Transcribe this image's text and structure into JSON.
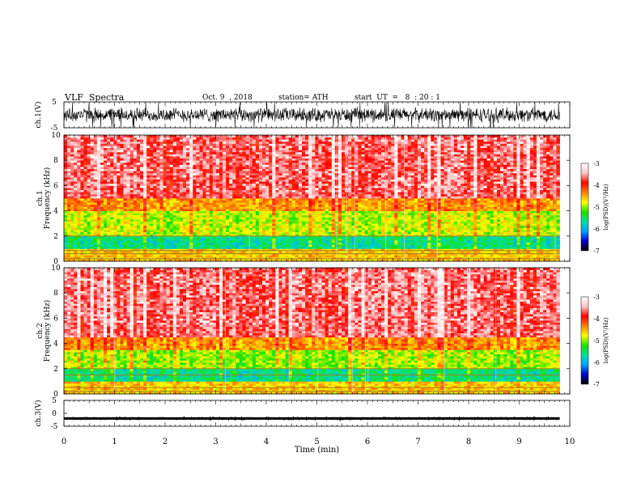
{
  "header": {
    "title": "VLF  Spectra",
    "date": "Oct. 9  , 2018",
    "station": "station= ATH",
    "start": "start  UT  =   8  : 20 : 1"
  },
  "chart_data": [
    {
      "type": "line",
      "name": "ch1-waveform",
      "ylabel": "ch.1(V)",
      "ylim": [
        -5,
        5
      ],
      "y_ticks": [
        "5",
        "-5"
      ],
      "xlim": [
        0,
        10
      ],
      "x_end": 9.8,
      "series": [
        {
          "mean": 0.0,
          "amplitude": 3.2,
          "color": "#000000"
        }
      ]
    },
    {
      "type": "heatmap",
      "name": "ch1-spectrogram",
      "ylabel": "ch.1\nFrequency  (kHz)",
      "ylim": [
        0,
        10
      ],
      "y_ticks": [
        "0",
        "2",
        "4",
        "6",
        "8",
        "10"
      ],
      "xlim": [
        0,
        10
      ],
      "x_end": 9.8,
      "colorbar": {
        "label": "log(PSD)(V²/Hz)",
        "range": [
          -7,
          -3
        ],
        "ticks": [
          "-3",
          "-4",
          "-5",
          "-6",
          "-7"
        ],
        "colors": [
          "#000000",
          "#0000c8",
          "#00a0ff",
          "#00e0a0",
          "#20e000",
          "#ffff00",
          "#ff8000",
          "#ff0000",
          "#ffc8c8",
          "#ffffff"
        ]
      },
      "bands_khz": [
        {
          "from": 5.0,
          "to": 10.0,
          "level": -3.7
        },
        {
          "from": 4.0,
          "to": 5.0,
          "level": -4.4
        },
        {
          "from": 2.0,
          "to": 4.0,
          "level": -4.9
        },
        {
          "from": 1.0,
          "to": 2.0,
          "level": -5.6
        },
        {
          "from": 0.0,
          "to": 1.0,
          "level": -4.6
        }
      ],
      "lines_khz": [
        2.0,
        0.85,
        0.6,
        0.2
      ]
    },
    {
      "type": "heatmap",
      "name": "ch2-spectrogram",
      "ylabel": "ch.2\nFrequency  (kHz)",
      "ylim": [
        0,
        10
      ],
      "y_ticks": [
        "0",
        "2",
        "4",
        "6",
        "8",
        "10"
      ],
      "xlim": [
        0,
        10
      ],
      "x_end": 9.8,
      "colorbar": {
        "label": "log(PSD)(V²/Hz)",
        "range": [
          -7,
          -3
        ],
        "ticks": [
          "-3",
          "-4",
          "-5",
          "-6",
          "-7"
        ],
        "colors": [
          "#000000",
          "#0000c8",
          "#00a0ff",
          "#00e0a0",
          "#20e000",
          "#ffff00",
          "#ff8000",
          "#ff0000",
          "#ffc8c8",
          "#ffffff"
        ]
      },
      "bands_khz": [
        {
          "from": 4.5,
          "to": 10.0,
          "level": -3.7
        },
        {
          "from": 3.5,
          "to": 4.5,
          "level": -4.4
        },
        {
          "from": 2.0,
          "to": 3.5,
          "level": -5.0
        },
        {
          "from": 1.0,
          "to": 2.0,
          "level": -5.6
        },
        {
          "from": 0.0,
          "to": 1.0,
          "level": -4.6
        }
      ],
      "lines_khz": [
        2.0,
        1.5,
        0.5,
        0.2
      ]
    },
    {
      "type": "line",
      "name": "ch3-waveform",
      "ylabel": "ch.3(V)",
      "ylim": [
        -5,
        5
      ],
      "y_ticks": [
        "5",
        "0",
        "-5"
      ],
      "xlim": [
        0,
        10
      ],
      "x_end": 9.8,
      "series": [
        {
          "mean": -2.0,
          "amplitude": 0.3,
          "color": "#000000"
        }
      ]
    }
  ],
  "x_axis": {
    "label": "Time  (min)",
    "ticks": [
      "0",
      "1",
      "2",
      "3",
      "4",
      "5",
      "6",
      "7",
      "8",
      "9",
      "10"
    ]
  }
}
